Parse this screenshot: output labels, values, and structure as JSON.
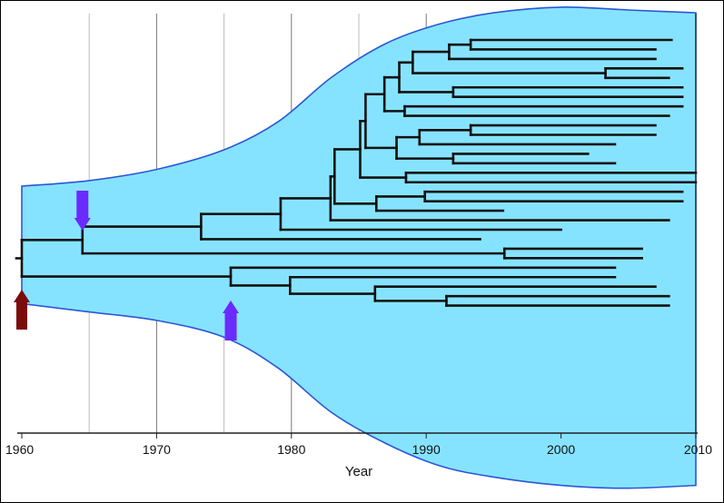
{
  "chart_data": {
    "type": "phylogenetic-tree",
    "xlabel": "Year",
    "xlim": [
      1960,
      2010
    ],
    "xticks": [
      "1960",
      "1970",
      "1980",
      "1990",
      "2000",
      "2010"
    ],
    "grid": "vertical lines every 5 years, darker every 10 years",
    "colors": {
      "envelope_fill": "#86E3FF",
      "envelope_stroke": "#2A57D8",
      "branch": "#111111",
      "root_arrow": "#7A0C0C",
      "event_arrow": "#6B2BFF",
      "grid_minor": "#BBBBBB",
      "grid_major": "#777777"
    },
    "envelope": {
      "description": "population diversity envelope (relative width, 0 at median)",
      "years": [
        1960,
        1965,
        1970,
        1975,
        1979,
        1983,
        1987,
        1991,
        1995,
        2000,
        2005,
        2010
      ],
      "upper": [
        0.37,
        0.39,
        0.43,
        0.5,
        0.6,
        0.76,
        0.88,
        0.95,
        0.99,
        1.01,
        1.0,
        0.99
      ],
      "lower": [
        -0.05,
        -0.08,
        -0.11,
        -0.17,
        -0.28,
        -0.44,
        -0.55,
        -0.63,
        -0.67,
        -0.7,
        -0.71,
        -0.7
      ]
    },
    "arrows": [
      {
        "year": 1960,
        "kind": "root",
        "direction": "up",
        "color": "#7A0C0C"
      },
      {
        "year": 1964.5,
        "kind": "event",
        "direction": "down",
        "color": "#6B2BFF"
      },
      {
        "year": 1975.5,
        "kind": "event",
        "direction": "up",
        "color": "#6B2BFF"
      }
    ],
    "tree": {
      "t": 1960,
      "children": [
        {
          "t": 1964.5,
          "children": [
            {
              "t": 1973.3,
              "children": [
                {
                  "t": 1979.2,
                  "children": [
                    {
                      "t": 1982.9,
                      "children": [
                        {
                          "t": 1983.2,
                          "children": [
                            {
                              "t": 1985.1,
                              "children": [
                                {
                                  "t": 1985.5,
                                  "children": [
                                    {
                                      "t": 1986.9,
                                      "children": [
                                        {
                                          "t": 1988.0,
                                          "children": [
                                            {
                                              "t": 1989.0,
                                              "children": [
                                                {
                                                  "t": 1991.7,
                                                  "children": [
                                                    {
                                                      "t": 1993.3,
                                                      "children": [
                                                        {
                                                          "t": 2008.2
                                                        },
                                                        {
                                                          "t": 2007.0
                                                        }
                                                      ]
                                                    },
                                                    {
                                                      "t": 2007.0
                                                    }
                                                  ]
                                                },
                                                {
                                                  "t": 2003.3,
                                                  "children": [
                                                    {
                                                      "t": 2009.0
                                                    },
                                                    {
                                                      "t": 2008.0
                                                    }
                                                  ]
                                                }
                                              ]
                                            },
                                            {
                                              "t": 1992.0,
                                              "children": [
                                                {
                                                  "t": 2009.0
                                                },
                                                {
                                                  "t": 2009.0
                                                }
                                              ]
                                            }
                                          ]
                                        },
                                        {
                                          "t": 1988.4,
                                          "children": [
                                            {
                                              "t": 2009.0
                                            },
                                            {
                                              "t": 2008.0
                                            }
                                          ]
                                        }
                                      ]
                                    },
                                    {
                                      "t": 1987.8,
                                      "children": [
                                        {
                                          "t": 1989.5,
                                          "children": [
                                            {
                                              "t": 1993.3,
                                              "children": [
                                                {
                                                  "t": 2007.0
                                                },
                                                {
                                                  "t": 2007.0
                                                }
                                              ]
                                            },
                                            {
                                              "t": 2004.0
                                            }
                                          ]
                                        },
                                        {
                                          "t": 1992.0,
                                          "children": [
                                            {
                                              "t": 2002.0
                                            },
                                            {
                                              "t": 2004.0
                                            }
                                          ]
                                        }
                                      ]
                                    }
                                  ]
                                },
                                {
                                  "t": 1988.5,
                                  "children": [
                                    {
                                      "t": 2010.0
                                    },
                                    {
                                      "t": 2010.0
                                    }
                                  ]
                                }
                              ]
                            },
                            {
                              "t": 1986.3,
                              "children": [
                                {
                                  "t": 1989.9,
                                  "children": [
                                    {
                                      "t": 2009.0
                                    },
                                    {
                                      "t": 2009.0
                                    }
                                  ]
                                },
                                {
                                  "t": 1995.7
                                }
                              ]
                            }
                          ]
                        },
                        {
                          "t": 2008.0
                        }
                      ]
                    },
                    {
                      "t": 2000.0
                    }
                  ]
                },
                {
                  "t": 1994.0
                }
              ]
            },
            {
              "t": 1995.8,
              "children": [
                {
                  "t": 2006.0
                },
                {
                  "t": 2006.0
                }
              ]
            }
          ]
        },
        {
          "t": 1975.5,
          "children": [
            {
              "t": 2004.0
            },
            {
              "t": 1979.9,
              "children": [
                {
                  "t": 2004.0
                },
                {
                  "t": 1986.2,
                  "children": [
                    {
                      "t": 2007.0
                    },
                    {
                      "t": 1991.5,
                      "children": [
                        {
                          "t": 2008.0
                        },
                        {
                          "t": 2008.0
                        }
                      ]
                    }
                  ]
                }
              ]
            }
          ]
        }
      ]
    }
  }
}
